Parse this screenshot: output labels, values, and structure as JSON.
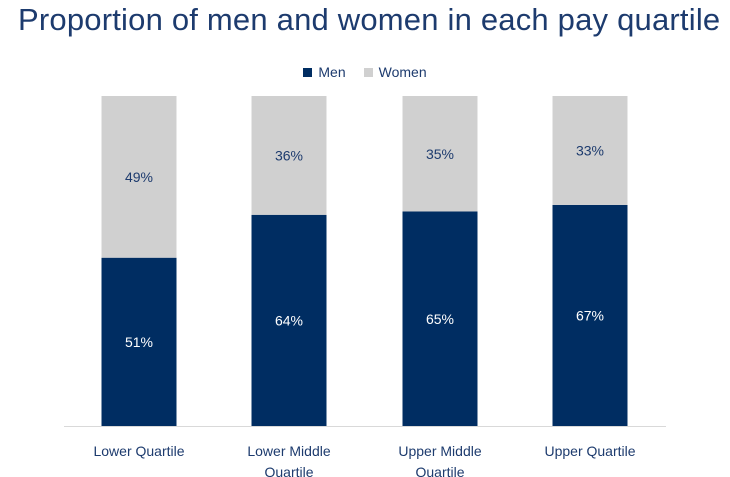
{
  "chart_data": {
    "type": "bar",
    "stacked": true,
    "title": "Proportion of men and women in each pay quartile",
    "categories": [
      [
        "Lower Quartile"
      ],
      [
        "Lower Middle",
        "Quartile"
      ],
      [
        "Upper Middle",
        "Quartile"
      ],
      [
        "Upper Quartile"
      ]
    ],
    "series": [
      {
        "name": "Men",
        "values": [
          51,
          64,
          65,
          67
        ],
        "labels": [
          "51%",
          "64%",
          "65%",
          "67%"
        ],
        "color": "#002d62",
        "label_color": "#ffffff"
      },
      {
        "name": "Women",
        "values": [
          49,
          36,
          35,
          33
        ],
        "labels": [
          "49%",
          "36%",
          "35%",
          "33%"
        ],
        "color": "#d0d0d0",
        "label_color": "#1d3b6e"
      }
    ],
    "ylim": [
      0,
      100
    ],
    "legend_position": "top-center",
    "grid": false
  }
}
